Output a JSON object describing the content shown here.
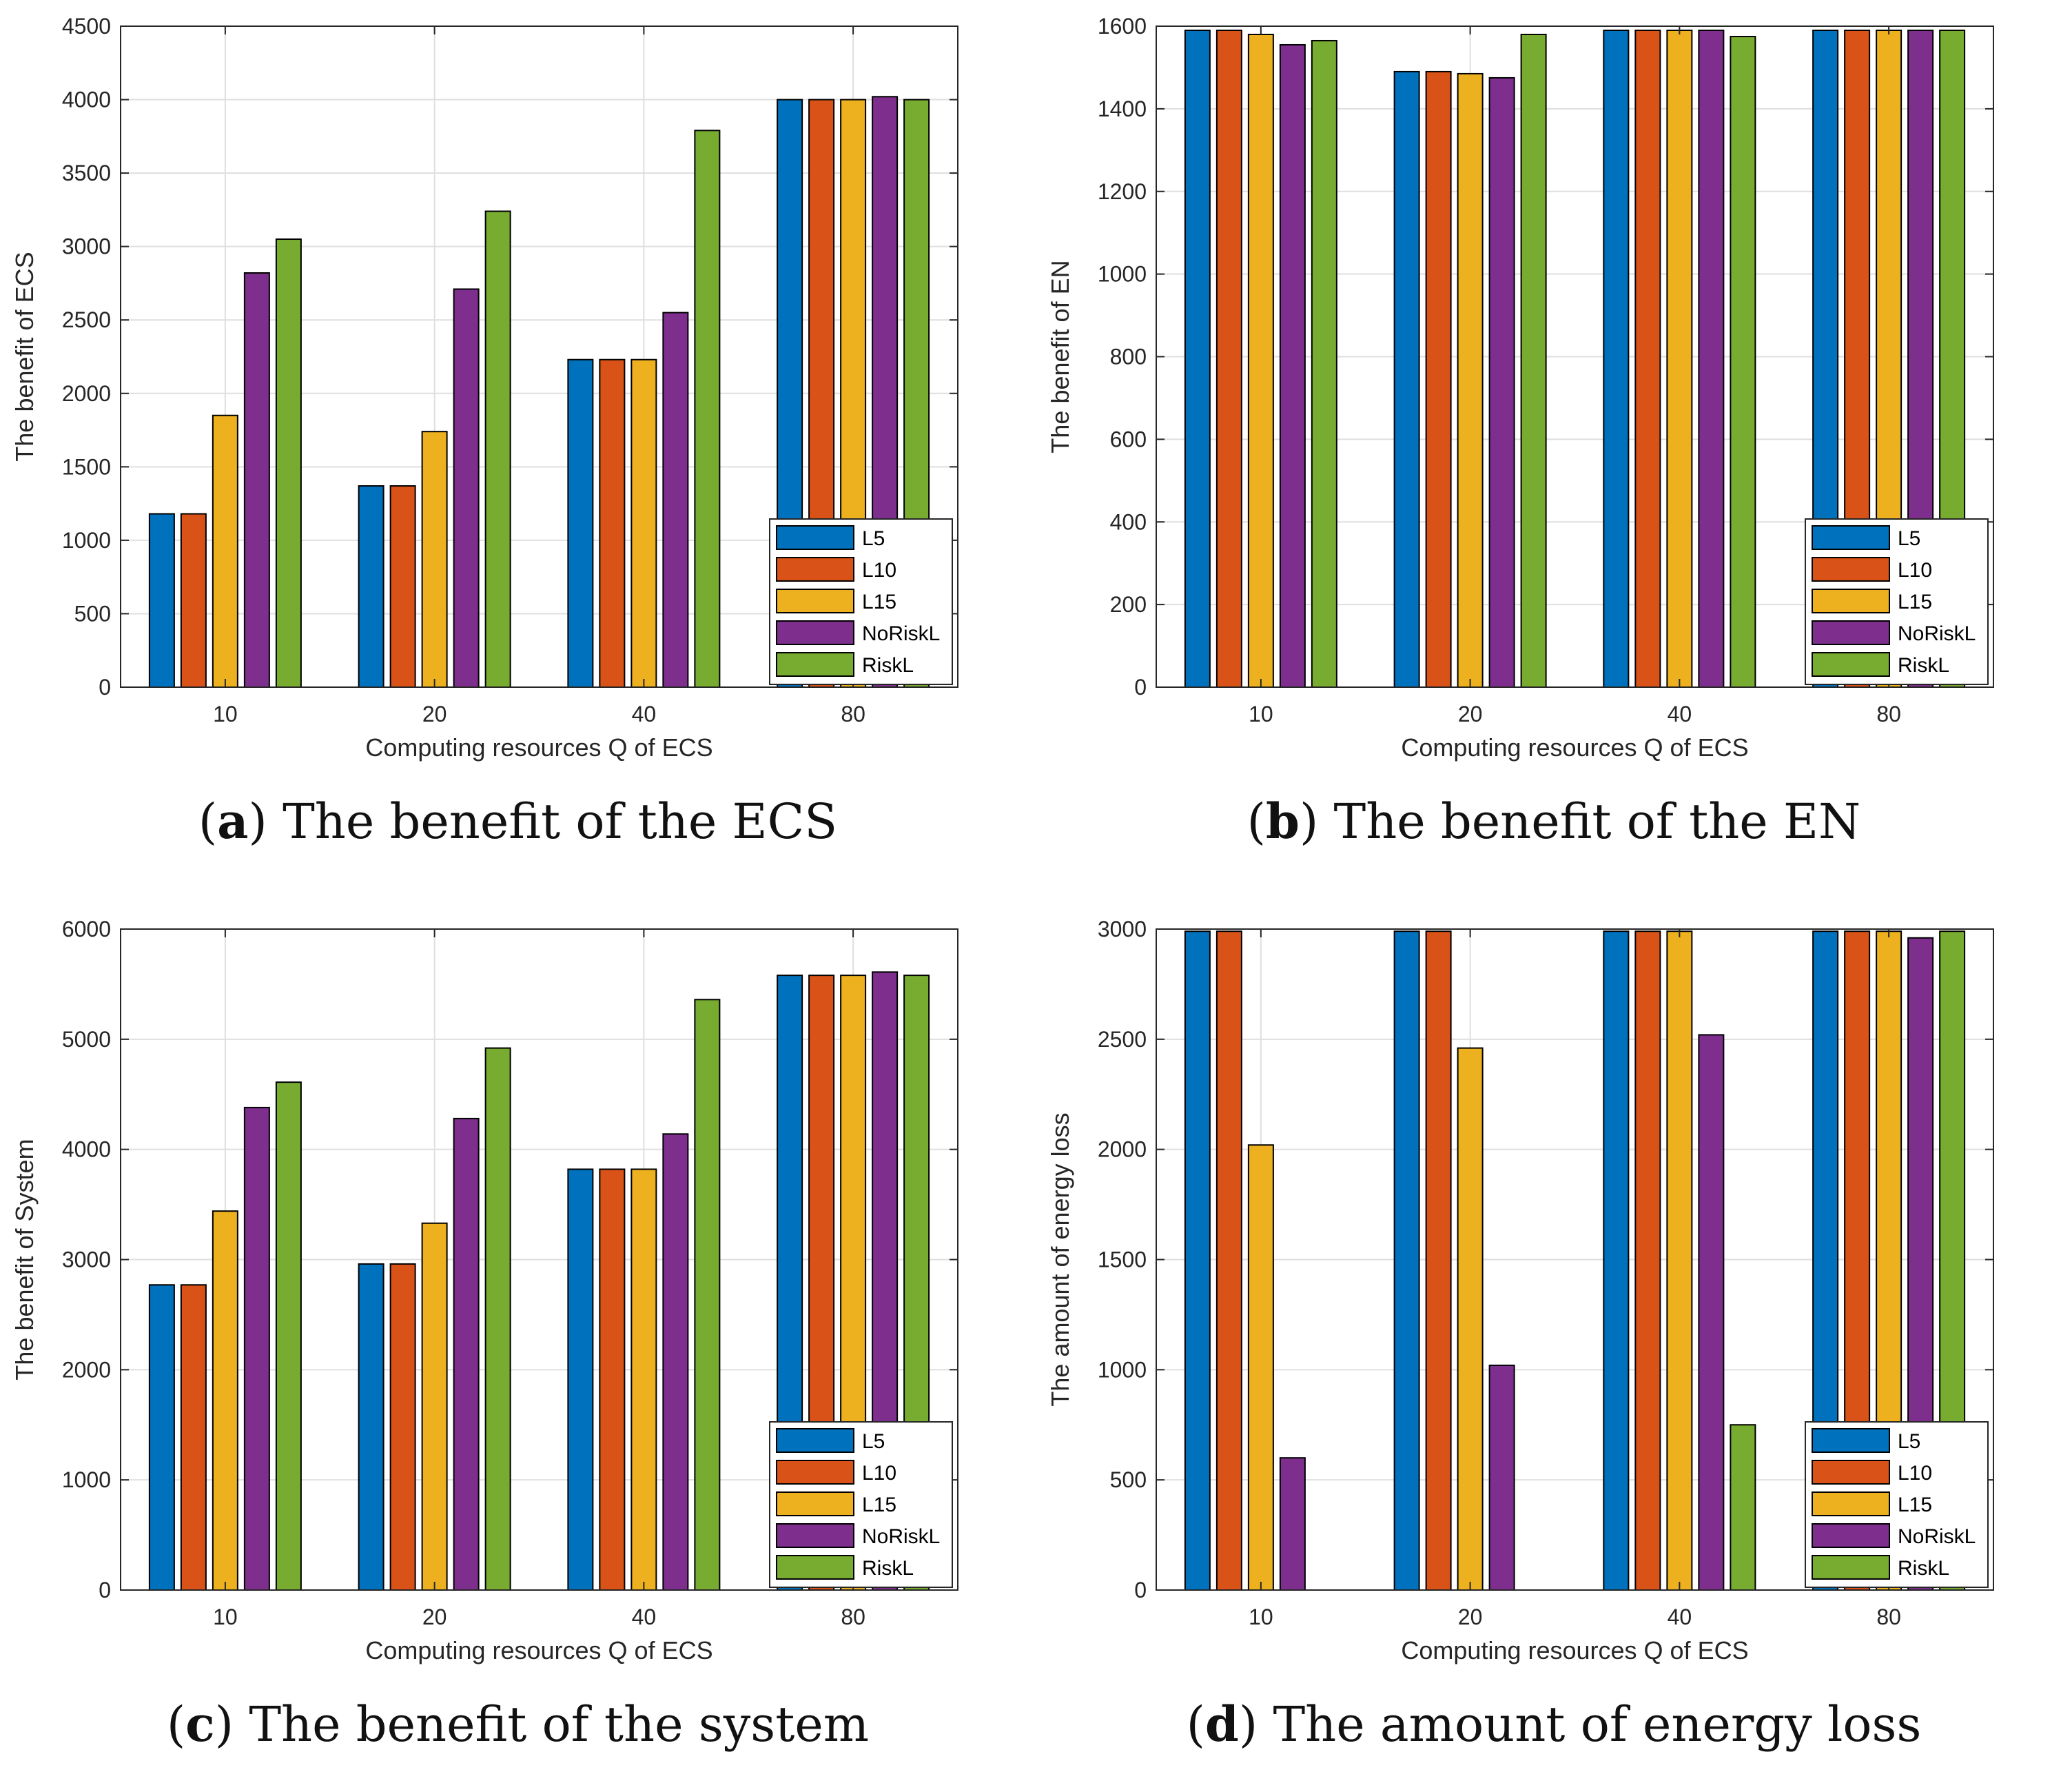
{
  "chart_data": [
    {
      "type": "bar",
      "panel_letter": "a",
      "caption": "The benefit of the ECS",
      "categories": [
        "10",
        "20",
        "40",
        "80"
      ],
      "series": [
        {
          "name": "L5",
          "color": "#0072BD",
          "values": [
            1180,
            1370,
            2230,
            4000
          ]
        },
        {
          "name": "L10",
          "color": "#D95319",
          "values": [
            1180,
            1370,
            2230,
            4000
          ]
        },
        {
          "name": "L15",
          "color": "#EDB120",
          "values": [
            1850,
            1740,
            2230,
            4000
          ]
        },
        {
          "name": "NoRiskL",
          "color": "#7E2F8E",
          "values": [
            2820,
            2710,
            2550,
            4020
          ]
        },
        {
          "name": "RiskL",
          "color": "#77AC30",
          "values": [
            3050,
            3240,
            3790,
            4000
          ]
        }
      ],
      "xlabel": "Computing resources Q of ECS",
      "ylabel": "The benefit of ECS",
      "ylim": [
        0,
        4500
      ],
      "yticks": [
        0,
        500,
        1000,
        1500,
        2000,
        2500,
        3000,
        3500,
        4000,
        4500
      ],
      "legend": "bottom-right",
      "grid": true
    },
    {
      "type": "bar",
      "panel_letter": "b",
      "caption": "The benefit of the EN",
      "categories": [
        "10",
        "20",
        "40",
        "80"
      ],
      "series": [
        {
          "name": "L5",
          "color": "#0072BD",
          "values": [
            1590,
            1490,
            1590,
            1590
          ]
        },
        {
          "name": "L10",
          "color": "#D95319",
          "values": [
            1590,
            1490,
            1590,
            1590
          ]
        },
        {
          "name": "L15",
          "color": "#EDB120",
          "values": [
            1580,
            1485,
            1590,
            1590
          ]
        },
        {
          "name": "NoRiskL",
          "color": "#7E2F8E",
          "values": [
            1555,
            1475,
            1590,
            1590
          ]
        },
        {
          "name": "RiskL",
          "color": "#77AC30",
          "values": [
            1565,
            1580,
            1575,
            1590
          ]
        }
      ],
      "xlabel": "Computing resources Q of ECS",
      "ylabel": "The benefit of EN",
      "ylim": [
        0,
        1600
      ],
      "yticks": [
        0,
        200,
        400,
        600,
        800,
        1000,
        1200,
        1400,
        1600
      ],
      "legend": "bottom-right",
      "grid": true
    },
    {
      "type": "bar",
      "panel_letter": "c",
      "caption": "The benefit of the system",
      "categories": [
        "10",
        "20",
        "40",
        "80"
      ],
      "series": [
        {
          "name": "L5",
          "color": "#0072BD",
          "values": [
            2770,
            2960,
            3820,
            5580
          ]
        },
        {
          "name": "L10",
          "color": "#D95319",
          "values": [
            2770,
            2960,
            3820,
            5580
          ]
        },
        {
          "name": "L15",
          "color": "#EDB120",
          "values": [
            3440,
            3330,
            3820,
            5580
          ]
        },
        {
          "name": "NoRiskL",
          "color": "#7E2F8E",
          "values": [
            4380,
            4280,
            4140,
            5610
          ]
        },
        {
          "name": "RiskL",
          "color": "#77AC30",
          "values": [
            4610,
            4920,
            5360,
            5580
          ]
        }
      ],
      "xlabel": "Computing resources Q of ECS",
      "ylabel": "The benefit of System",
      "ylim": [
        0,
        6000
      ],
      "yticks": [
        0,
        1000,
        2000,
        3000,
        4000,
        5000,
        6000
      ],
      "legend": "bottom-right",
      "grid": true
    },
    {
      "type": "bar",
      "panel_letter": "d",
      "caption": "The amount of energy loss",
      "categories": [
        "10",
        "20",
        "40",
        "80"
      ],
      "series": [
        {
          "name": "L5",
          "color": "#0072BD",
          "values": [
            2990,
            2990,
            2990,
            2990
          ]
        },
        {
          "name": "L10",
          "color": "#D95319",
          "values": [
            2990,
            2990,
            2990,
            2990
          ]
        },
        {
          "name": "L15",
          "color": "#EDB120",
          "values": [
            2020,
            2460,
            2990,
            2990
          ]
        },
        {
          "name": "NoRiskL",
          "color": "#7E2F8E",
          "values": [
            600,
            1020,
            2520,
            2960
          ]
        },
        {
          "name": "RiskL",
          "color": "#77AC30",
          "values": [
            0,
            0,
            750,
            2990
          ]
        }
      ],
      "xlabel": "Computing resources Q of ECS",
      "ylabel": "The amount of energy loss",
      "ylim": [
        0,
        3000
      ],
      "yticks": [
        0,
        500,
        1000,
        1500,
        2000,
        2500,
        3000
      ],
      "legend": "bottom-right",
      "grid": true
    }
  ]
}
